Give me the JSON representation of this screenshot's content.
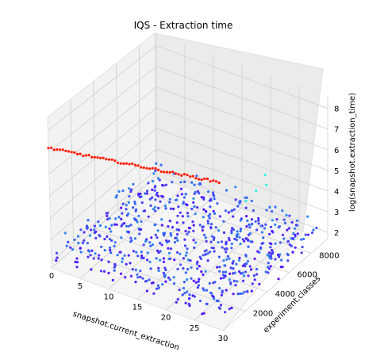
{
  "chart_data": {
    "type": "scatter",
    "projection": "3d",
    "title": "IQS - Extraction time",
    "xlabel": "snapshot.current_extraction",
    "ylabel": "experiment.classes",
    "zlabel": "log(snapshot.extraction_time)",
    "xlim": [
      0,
      30
    ],
    "ylim": [
      0,
      9500
    ],
    "zlim": [
      1.7,
      8.6
    ],
    "xticks": [
      0,
      5,
      10,
      15,
      20,
      25,
      30
    ],
    "xtick_labels": [
      "0",
      "5",
      "10",
      "15",
      "20",
      "25",
      "30"
    ],
    "yticks": [
      2000,
      4000,
      6000,
      8000
    ],
    "ytick_labels": [
      "2000",
      "4000",
      "6000",
      "8000"
    ],
    "zticks": [
      2,
      3,
      4,
      5,
      6,
      7,
      8
    ],
    "ztick_labels": [
      "2",
      "3",
      "4",
      "5",
      "6",
      "7",
      "8"
    ],
    "colormap": "rainbow",
    "grid": true,
    "series": [
      {
        "description": "bulk of runs",
        "x_range": [
          0,
          30
        ],
        "y_range": [
          300,
          9300
        ],
        "z_range": [
          1.8,
          2.8
        ],
        "color_range": [
          "#5a10ff",
          "#2a8cf0"
        ]
      },
      {
        "description": "elevated cluster near x=20, y=8000",
        "x": [
          19,
          20,
          21,
          20
        ],
        "y": [
          7800,
          8200,
          8600,
          9000
        ],
        "z": [
          3.2,
          3.6,
          3.8,
          4.0
        ],
        "color": "#30f0e0"
      },
      {
        "description": "outlier runs, top of range",
        "x_range": [
          0,
          30
        ],
        "y_value": 0,
        "z_range": [
          7.2,
          8.5
        ],
        "color": "#ff1a00"
      }
    ]
  }
}
